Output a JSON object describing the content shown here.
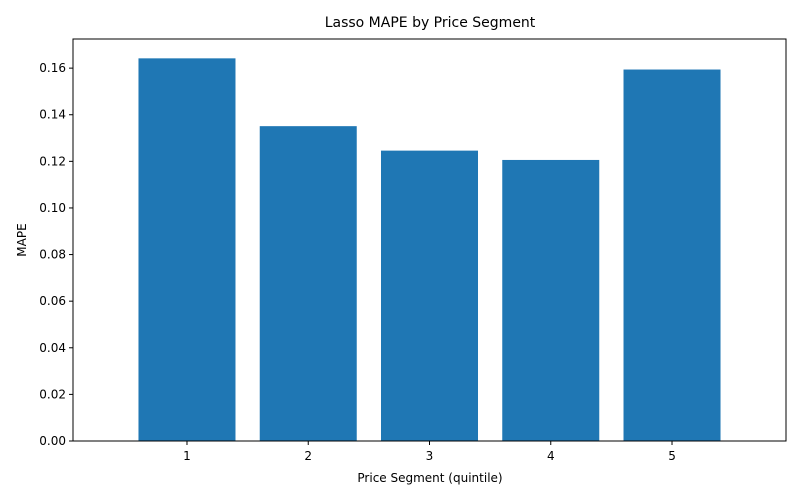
{
  "chart_data": {
    "type": "bar",
    "title": "Lasso MAPE by Price Segment",
    "xlabel": "Price Segment (quintile)",
    "ylabel": "MAPE",
    "categories": [
      "1",
      "2",
      "3",
      "4",
      "5"
    ],
    "values": [
      0.1642,
      0.1351,
      0.1246,
      0.1206,
      0.1594
    ],
    "ylim": [
      0,
      0.1725
    ],
    "yticks": [
      0.0,
      0.02,
      0.04,
      0.06,
      0.08,
      0.1,
      0.12,
      0.14,
      0.16
    ],
    "ytick_labels": [
      "0.00",
      "0.02",
      "0.04",
      "0.06",
      "0.08",
      "0.10",
      "0.12",
      "0.14",
      "0.16"
    ],
    "bar_color": "#1f77b4",
    "grid": false,
    "legend": false
  }
}
